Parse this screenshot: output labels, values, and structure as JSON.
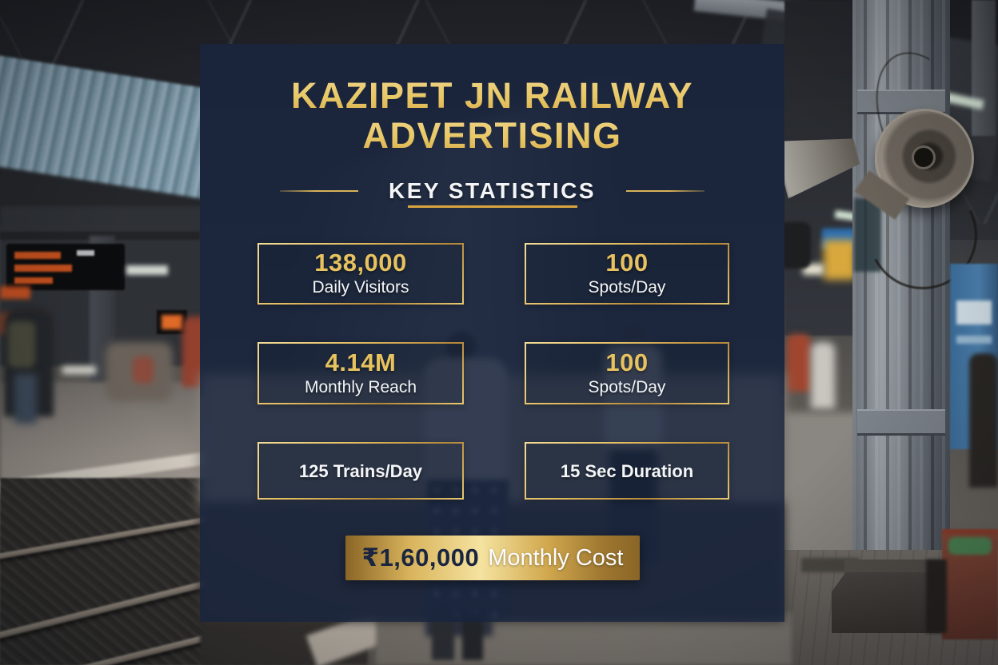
{
  "poster": {
    "title_line1": "KAZIPET JN RAILWAY",
    "title_line2": "ADVERTISING",
    "subtitle": "KEY STATISTICS",
    "stats": [
      {
        "value": "138,000",
        "label": "Daily Visitors"
      },
      {
        "value": "100",
        "label": "Spots/Day"
      },
      {
        "value": "4.14M",
        "label": "Monthly Reach"
      },
      {
        "value": "100",
        "label": "Spots/Day"
      },
      {
        "value": "",
        "label": "125 Trains/Day"
      },
      {
        "value": "",
        "label": "15 Sec Duration"
      }
    ],
    "cost_banner": {
      "amount": "₹1,60,000",
      "label": "Monthly Cost"
    },
    "colors": {
      "gold": "#e7c25f",
      "gold_light": "#f5e3a0",
      "gold_dark": "#8a6526",
      "panel_navy": "rgba(24, 36, 63, 0.8)",
      "text_white": "#f4f5f7",
      "amount_navy": "#1a2540"
    }
  }
}
